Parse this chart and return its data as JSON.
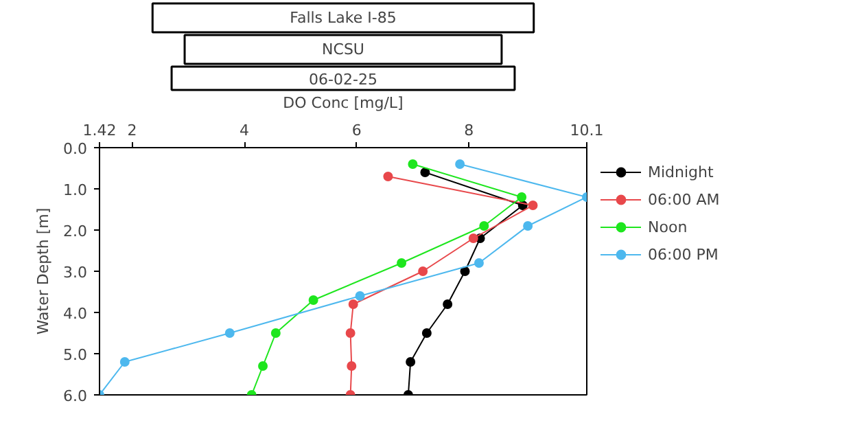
{
  "chart_data": {
    "type": "line",
    "title": "Falls Lake I-85",
    "subtitle": "NCSU",
    "annotations": [
      "06-02-25"
    ],
    "xlabel": "DO Conc [mg/L]",
    "ylabel": "Water Depth [m]",
    "xlim": [
      1.42,
      10.1
    ],
    "xticks": [
      1.42,
      2,
      4,
      6,
      8,
      10.1
    ],
    "ylim": [
      6,
      0
    ],
    "yticks": [
      {
        "value": 0,
        "label": "0.0"
      },
      {
        "value": 1,
        "label": "1.0"
      },
      {
        "value": 2,
        "label": "2.0"
      },
      {
        "value": 3,
        "label": "3.0"
      },
      {
        "value": 4,
        "label": "4.0"
      },
      {
        "value": 5,
        "label": "5.0"
      },
      {
        "value": 6,
        "label": "6.0"
      }
    ],
    "grid": false,
    "legend": "top right",
    "marker": "circle",
    "line_style": "solid",
    "series": [
      {
        "name": "Midnight",
        "color": "#000000",
        "x": [
          7.22,
          8.96,
          8.2,
          7.93,
          7.62,
          7.25,
          6.96,
          6.92
        ],
        "values": [
          0.6,
          1.4,
          2.2,
          3.0,
          3.8,
          4.5,
          5.2,
          6.0
        ]
      },
      {
        "name": "06:00 AM",
        "color": "#e8484b",
        "x": [
          6.56,
          9.14,
          8.08,
          7.18,
          5.94,
          5.89,
          5.91,
          5.89
        ],
        "values": [
          0.7,
          1.4,
          2.2,
          3.0,
          3.8,
          4.5,
          5.3,
          6.0
        ]
      },
      {
        "name": "Noon",
        "color": "#1ee61e",
        "x": [
          7.0,
          8.94,
          8.27,
          6.8,
          5.23,
          4.56,
          4.33,
          4.13
        ],
        "values": [
          0.4,
          1.2,
          1.9,
          2.8,
          3.7,
          4.5,
          5.3,
          6.0
        ]
      },
      {
        "name": "06:00 PM",
        "color": "#4db8ee",
        "x": [
          7.84,
          10.1,
          9.05,
          8.18,
          6.06,
          3.74,
          1.87,
          1.42
        ],
        "values": [
          0.4,
          1.2,
          1.9,
          2.8,
          3.6,
          4.5,
          5.2,
          6.0
        ]
      }
    ]
  }
}
